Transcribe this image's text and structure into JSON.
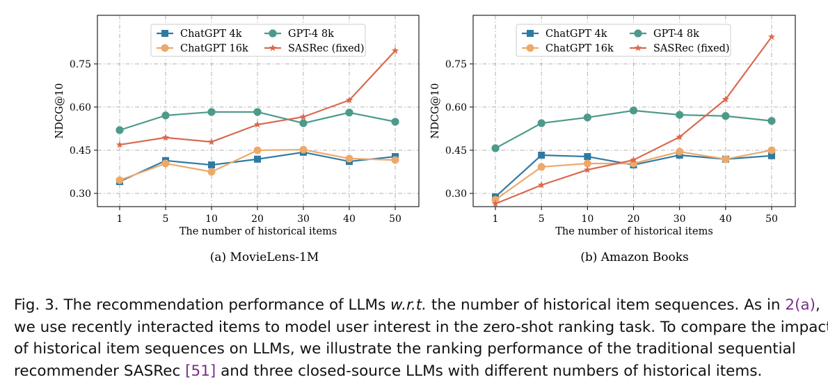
{
  "chart_data": [
    {
      "type": "line",
      "subcaption": "(a)  MovieLens-1M",
      "xlabel": "The number of historical items",
      "ylabel": "NDCG@10",
      "categories": [
        "1",
        "5",
        "10",
        "20",
        "30",
        "40",
        "50"
      ],
      "ylim": [
        0.254,
        0.919
      ],
      "yticks": [
        "0.30",
        "0.45",
        "0.60",
        "0.75"
      ],
      "grid": true,
      "legend": "top-center",
      "series": [
        {
          "name": "ChatGPT 4k",
          "marker": "square",
          "color": "#2f7aa3",
          "values": [
            0.341,
            0.414,
            0.399,
            0.419,
            0.443,
            0.411,
            0.428
          ]
        },
        {
          "name": "ChatGPT 16k",
          "marker": "circle",
          "color": "#eda96a",
          "values": [
            0.346,
            0.404,
            0.375,
            0.45,
            0.452,
            0.421,
            0.416
          ]
        },
        {
          "name": "GPT-4 8k",
          "marker": "x",
          "color": "#4c9a8a",
          "values": [
            0.52,
            0.571,
            0.583,
            0.583,
            0.544,
            0.581,
            0.549
          ]
        },
        {
          "name": "SASRec (fixed)",
          "marker": "star",
          "color": "#d9694f",
          "values": [
            0.469,
            0.494,
            0.479,
            0.539,
            0.566,
            0.624,
            0.796
          ]
        }
      ]
    },
    {
      "type": "line",
      "subcaption": "(b)  Amazon Books",
      "xlabel": "The number of historical items",
      "ylabel": "NDCG@10",
      "categories": [
        "1",
        "5",
        "10",
        "20",
        "30",
        "40",
        "50"
      ],
      "ylim": [
        0.254,
        0.919
      ],
      "yticks": [
        "0.30",
        "0.45",
        "0.60",
        "0.75"
      ],
      "grid": true,
      "legend": "top-center",
      "series": [
        {
          "name": "ChatGPT 4k",
          "marker": "square",
          "color": "#2f7aa3",
          "values": [
            0.288,
            0.433,
            0.428,
            0.399,
            0.433,
            0.419,
            0.431
          ]
        },
        {
          "name": "ChatGPT 16k",
          "marker": "circle",
          "color": "#eda96a",
          "values": [
            0.278,
            0.392,
            0.404,
            0.404,
            0.445,
            0.419,
            0.45
          ]
        },
        {
          "name": "GPT-4 8k",
          "marker": "x",
          "color": "#4c9a8a",
          "values": [
            0.457,
            0.544,
            0.564,
            0.588,
            0.573,
            0.569,
            0.552
          ]
        },
        {
          "name": "SASRec (fixed)",
          "marker": "star",
          "color": "#d9694f",
          "values": [
            0.264,
            0.329,
            0.382,
            0.416,
            0.496,
            0.627,
            0.844
          ]
        }
      ]
    }
  ],
  "caption": {
    "lines": [
      [
        "Fig. 3.  The recommendation performance of LLMs ",
        "w.r.t.",
        " the number of historical item sequences. As in ",
        "2(a)",
        ","
      ],
      [
        "we use recently interacted items to model user interest in the zero-shot ranking task. To compare the impact"
      ],
      [
        "of historical item sequences on LLMs, we illustrate the ranking performance of the traditional sequential"
      ],
      [
        "recommender SASRec ",
        "[51]",
        " and three closed-source LLMs with different numbers of historical items."
      ]
    ]
  }
}
